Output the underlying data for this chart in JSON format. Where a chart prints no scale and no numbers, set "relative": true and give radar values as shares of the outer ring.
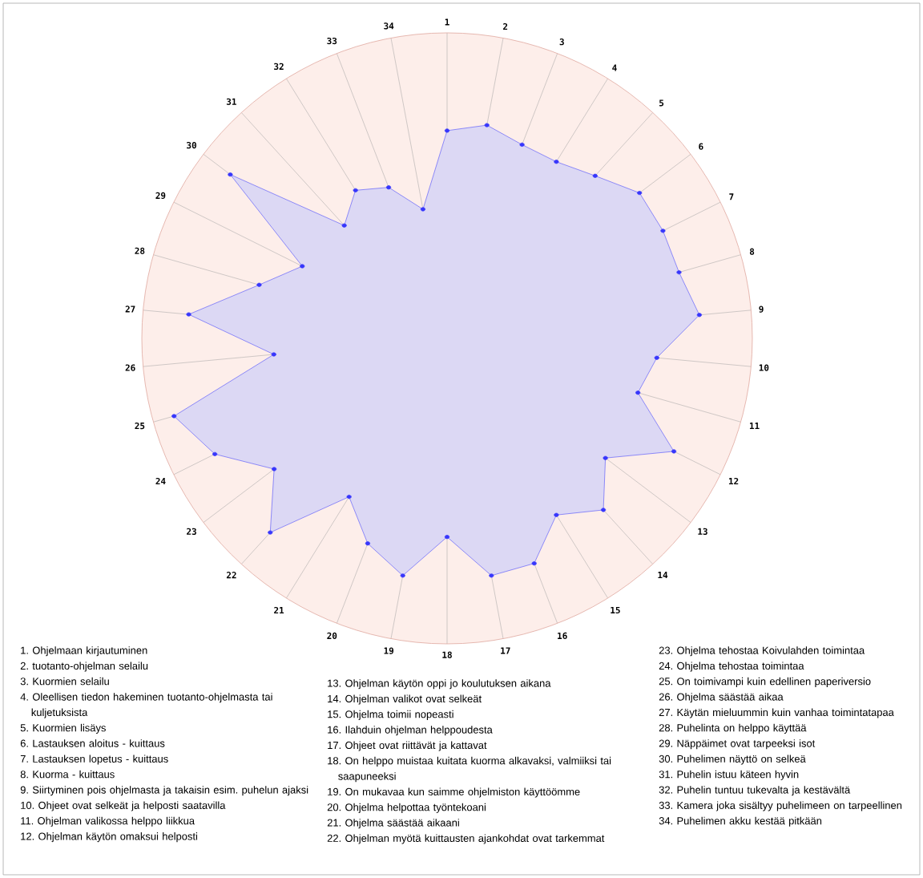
{
  "chart_data": {
    "type": "radar",
    "relative": true,
    "marker": "circle",
    "categories": [
      "1",
      "2",
      "3",
      "4",
      "5",
      "6",
      "7",
      "8",
      "9",
      "10",
      "11",
      "12",
      "13",
      "14",
      "15",
      "16",
      "17",
      "18",
      "19",
      "20",
      "21",
      "22",
      "23",
      "24",
      "25",
      "26",
      "27",
      "28",
      "29",
      "30",
      "31",
      "32",
      "33",
      "34"
    ],
    "series": [
      {
        "color": "#dcd8f4",
        "values": [
          0.68,
          0.71,
          0.68,
          0.68,
          0.72,
          0.79,
          0.79,
          0.79,
          0.83,
          0.69,
          0.65,
          0.83,
          0.65,
          0.76,
          0.68,
          0.79,
          0.79,
          0.65,
          0.79,
          0.72,
          0.61,
          0.86,
          0.71,
          0.85,
          0.93,
          0.57,
          0.85,
          0.64,
          0.53,
          0.89,
          0.5,
          0.57,
          0.53,
          0.43
        ]
      }
    ],
    "annotations": [
      "1. Ohjelmaan kirjautuminen",
      "2. tuotanto-ohjelman selailu",
      "3. Kuormien selailu",
      "4. Oleellisen tiedon hakeminen tuotanto-ohjelmasta tai kuljetuksista",
      "5. Kuormien lisäys",
      "6. Lastauksen aloitus - kuittaus",
      "7. Lastauksen lopetus - kuittaus",
      "8. Kuorma - kuittaus",
      "9. Siirtyminen pois ohjelmasta ja takaisin esim. puhelun ajaksi",
      "10. Ohjeet ovat selkeät ja helposti saatavilla",
      "11. Ohjelman valikossa helppo liikkua",
      "12. Ohjelman käytön omaksui helposti",
      "13. Ohjelman käytön oppi jo koulutuksen aikana",
      "14. Ohjelman valikot ovat selkeät",
      "15. Ohjelma toimii nopeasti",
      "16. Ilahduin ohjelman helppoudesta",
      "17. Ohjeet ovat riittävät ja kattavat",
      "18. On helppo muistaa kuitata kuorma alkavaksi, valmiiksi tai saapuneeksi",
      "19. On mukavaa kun saimme ohjelmiston käyttöömme",
      "20. Ohjelma helpottaa työntekoani",
      "21. Ohjelma säästää aikaani",
      "22. Ohjelman myötä kuittausten ajankohdat ovat tarkemmat",
      "23. Ohjelma tehostaa Koivulahden toimintaa",
      "24. Ohjelma tehostaa toimintaa",
      "25. On toimivampi kuin edellinen paperiversio",
      "26. Ohjelma säästää aikaa",
      "27. Käytän mieluummin kuin vanhaa toimintatapaa",
      "28. Puhelinta on helppo käyttää",
      "29. Näppäimet ovat tarpeeksi isot",
      "30. Puhelimen näyttö on selkeä",
      "31. Puhelin istuu käteen hyvin",
      "32. Puhelin tuntuu tukevalta ja kestävältä",
      "33. Kamera joka sisältyy puhelimeen on tarpeellinen",
      "34. Puhelimen akku kestää pitkään"
    ]
  }
}
